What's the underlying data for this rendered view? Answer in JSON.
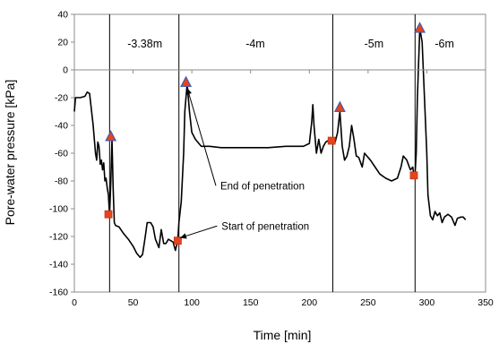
{
  "chart_data": {
    "type": "line",
    "title": "",
    "xlabel": "Time [min]",
    "ylabel": "Pore-water pressure [kPa]",
    "xlim": [
      0,
      350
    ],
    "ylim": [
      -160,
      40
    ],
    "xticks": [
      0,
      50,
      100,
      150,
      200,
      250,
      300,
      350
    ],
    "yticks": [
      40,
      20,
      0,
      -20,
      -40,
      -60,
      -80,
      -100,
      -120,
      -140,
      -160
    ],
    "grid": false,
    "series": [
      {
        "values": [
          [
            0,
            -30
          ],
          [
            1,
            -20
          ],
          [
            5,
            -20
          ],
          [
            9,
            -19
          ],
          [
            11,
            -16
          ],
          [
            13,
            -17
          ],
          [
            14,
            -25
          ],
          [
            16,
            -40
          ],
          [
            18,
            -60
          ],
          [
            19,
            -65
          ],
          [
            20,
            -52
          ],
          [
            21,
            -55
          ],
          [
            22,
            -68
          ],
          [
            23,
            -65
          ],
          [
            24,
            -72
          ],
          [
            25,
            -67
          ],
          [
            26,
            -80
          ],
          [
            27,
            -78
          ],
          [
            28,
            -85
          ],
          [
            29,
            -90
          ],
          [
            30,
            -105
          ],
          [
            31,
            -80
          ],
          [
            32,
            -50
          ],
          [
            33,
            -85
          ],
          [
            34,
            -110
          ],
          [
            35,
            -112
          ],
          [
            38,
            -113
          ],
          [
            42,
            -118
          ],
          [
            46,
            -122
          ],
          [
            50,
            -127
          ],
          [
            53,
            -132
          ],
          [
            56,
            -135
          ],
          [
            58,
            -133
          ],
          [
            60,
            -122
          ],
          [
            62,
            -110
          ],
          [
            65,
            -110
          ],
          [
            67,
            -113
          ],
          [
            69,
            -122
          ],
          [
            72,
            -128
          ],
          [
            74,
            -115
          ],
          [
            76,
            -125
          ],
          [
            78,
            -125
          ],
          [
            80,
            -122
          ],
          [
            82,
            -123
          ],
          [
            84,
            -124
          ],
          [
            86,
            -130
          ],
          [
            88,
            -123
          ],
          [
            89,
            -110
          ],
          [
            91,
            -95
          ],
          [
            93,
            -60
          ],
          [
            94,
            -30
          ],
          [
            96,
            -10
          ],
          [
            98,
            -30
          ],
          [
            100,
            -45
          ],
          [
            103,
            -50
          ],
          [
            108,
            -55
          ],
          [
            115,
            -55
          ],
          [
            125,
            -56
          ],
          [
            135,
            -56
          ],
          [
            150,
            -56
          ],
          [
            165,
            -56
          ],
          [
            180,
            -55
          ],
          [
            195,
            -55
          ],
          [
            200,
            -53
          ],
          [
            202,
            -38
          ],
          [
            203,
            -25
          ],
          [
            204,
            -40
          ],
          [
            206,
            -60
          ],
          [
            208,
            -50
          ],
          [
            210,
            -60
          ],
          [
            212,
            -55
          ],
          [
            214,
            -52
          ],
          [
            218,
            -50
          ],
          [
            220,
            -51
          ],
          [
            222,
            -52
          ],
          [
            224,
            -45
          ],
          [
            226,
            -30
          ],
          [
            228,
            -55
          ],
          [
            230,
            -65
          ],
          [
            232,
            -62
          ],
          [
            234,
            -55
          ],
          [
            236,
            -40
          ],
          [
            238,
            -50
          ],
          [
            240,
            -62
          ],
          [
            242,
            -63
          ],
          [
            245,
            -70
          ],
          [
            247,
            -60
          ],
          [
            249,
            -62
          ],
          [
            252,
            -65
          ],
          [
            256,
            -70
          ],
          [
            260,
            -75
          ],
          [
            265,
            -78
          ],
          [
            270,
            -80
          ],
          [
            275,
            -78
          ],
          [
            278,
            -70
          ],
          [
            280,
            -62
          ],
          [
            283,
            -65
          ],
          [
            286,
            -72
          ],
          [
            288,
            -70
          ],
          [
            289,
            -76
          ],
          [
            290,
            -75
          ],
          [
            291,
            -60
          ],
          [
            292,
            -20
          ],
          [
            294,
            30
          ],
          [
            296,
            20
          ],
          [
            298,
            -20
          ],
          [
            300,
            -60
          ],
          [
            301,
            -90
          ],
          [
            303,
            -105
          ],
          [
            305,
            -108
          ],
          [
            307,
            -102
          ],
          [
            309,
            -105
          ],
          [
            311,
            -103
          ],
          [
            313,
            -110
          ],
          [
            315,
            -106
          ],
          [
            318,
            -104
          ],
          [
            321,
            -106
          ],
          [
            324,
            -112
          ],
          [
            326,
            -107
          ],
          [
            329,
            -106
          ],
          [
            331,
            -106
          ],
          [
            333,
            -108
          ]
        ]
      }
    ],
    "phase_boundaries": [
      30,
      89,
      220,
      290
    ],
    "phase_labels": [
      {
        "x": 60,
        "text": "-3.38m"
      },
      {
        "x": 154,
        "text": "-4m"
      },
      {
        "x": 255,
        "text": "-5m"
      },
      {
        "x": 315,
        "text": "-6m"
      }
    ],
    "start_markers": [
      [
        29,
        -104
      ],
      [
        88,
        -123
      ],
      [
        219,
        -51
      ],
      [
        289,
        -76
      ]
    ],
    "end_markers": [
      [
        31,
        -48
      ],
      [
        95,
        -9
      ],
      [
        226,
        -27
      ],
      [
        294,
        30
      ]
    ],
    "start_marker_color": "#e8431c",
    "end_marker_color": "#e8431c",
    "end_marker_edge": "#4a5ba8",
    "annotations": [
      {
        "text": "End of penetration",
        "target": [
          96,
          -13
        ],
        "label_at": [
          122,
          -86
        ]
      },
      {
        "text": "Start of penetration",
        "target": [
          90,
          -121
        ],
        "label_at": [
          123,
          -115
        ]
      }
    ]
  }
}
